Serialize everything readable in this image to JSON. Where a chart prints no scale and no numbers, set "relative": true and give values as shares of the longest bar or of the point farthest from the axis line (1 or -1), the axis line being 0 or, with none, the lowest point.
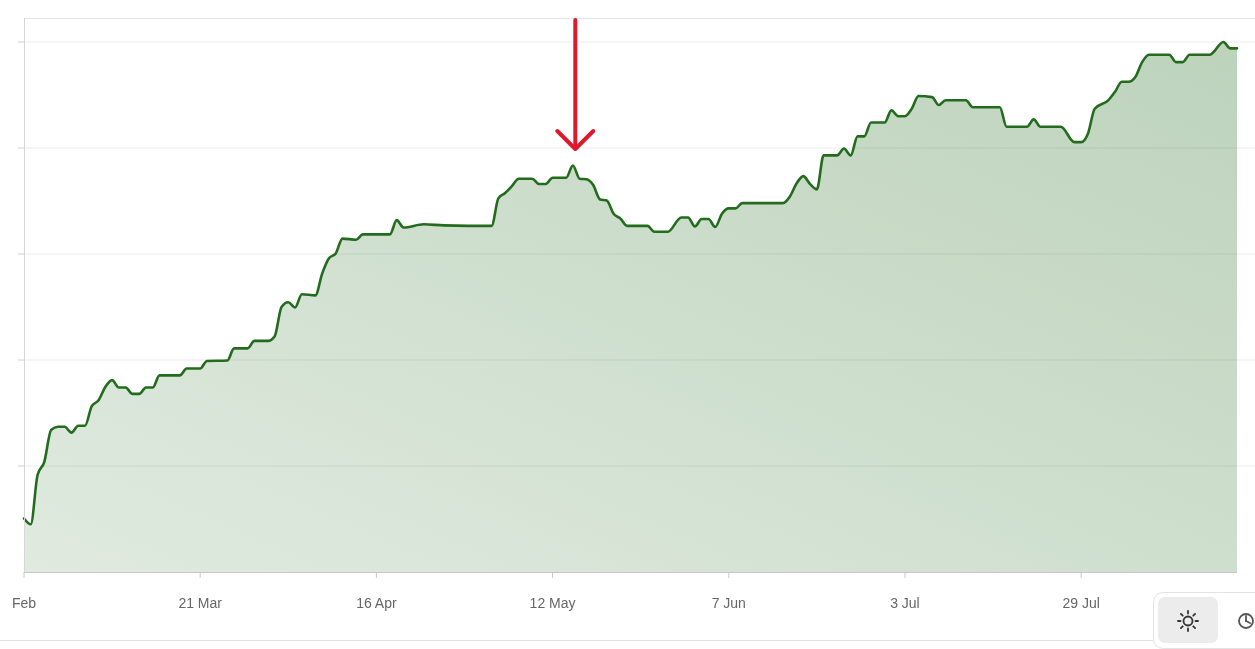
{
  "chart_data": {
    "type": "area",
    "relative": true,
    "grid": "y",
    "x": [
      "--02-23",
      "--02-24",
      "--02-25",
      "--02-26",
      "--02-27",
      "--02-28",
      "--03-01",
      "--03-02",
      "--03-03",
      "--03-04",
      "--03-05",
      "--03-06",
      "--03-07",
      "--03-08",
      "--03-09",
      "--03-10",
      "--03-11",
      "--03-12",
      "--03-13",
      "--03-14",
      "--03-15",
      "--03-18",
      "--03-19",
      "--03-21",
      "--03-22",
      "--03-25",
      "--03-26",
      "--03-28",
      "--03-29",
      "--03-31",
      "--04-01",
      "--04-02",
      "--04-03",
      "--04-04",
      "--04-05",
      "--04-07",
      "--04-08",
      "--04-09",
      "--04-10",
      "--04-11",
      "--04-13",
      "--04-14",
      "--04-18",
      "--04-19",
      "--04-20",
      "--04-23",
      "--04-26",
      "--05-03",
      "--05-04",
      "--05-05",
      "--05-06",
      "--05-07",
      "--05-09",
      "--05-10",
      "--05-11",
      "--05-12",
      "--05-14",
      "--05-15",
      "--05-16",
      "--05-17",
      "--05-18",
      "--05-19",
      "--05-20",
      "--05-21",
      "--05-22",
      "--05-23",
      "--05-26",
      "--05-27",
      "--05-29",
      "--05-31",
      "--06-01",
      "--06-02",
      "--06-03",
      "--06-04",
      "--06-05",
      "--06-06",
      "--06-07",
      "--06-08",
      "--06-09",
      "--06-15",
      "--06-16",
      "--06-17",
      "--06-18",
      "--06-19",
      "--06-20",
      "--06-21",
      "--06-23",
      "--06-24",
      "--06-25",
      "--06-26",
      "--06-27",
      "--06-28",
      "--06-30",
      "--07-01",
      "--07-02",
      "--07-03",
      "--07-04",
      "--07-05",
      "--07-07",
      "--07-08",
      "--07-09",
      "--07-12",
      "--07-13",
      "--07-17",
      "--07-18",
      "--07-21",
      "--07-22",
      "--07-23",
      "--07-26",
      "--07-28",
      "--07-29",
      "--07-30",
      "--07-31",
      "--08-02",
      "--08-03",
      "--08-04",
      "--08-05",
      "--08-06",
      "--08-07",
      "--08-08",
      "--08-11",
      "--08-12",
      "--08-13",
      "--08-14",
      "--08-17",
      "--08-19",
      "--08-20",
      "--08-21"
    ],
    "series": [
      {
        "color": "#236c1e",
        "values": [
          0.101,
          0.09,
          0.183,
          0.208,
          0.268,
          0.274,
          0.274,
          0.263,
          0.276,
          0.276,
          0.313,
          0.324,
          0.349,
          0.362,
          0.348,
          0.348,
          0.336,
          0.336,
          0.348,
          0.348,
          0.371,
          0.371,
          0.384,
          0.384,
          0.398,
          0.399,
          0.422,
          0.422,
          0.436,
          0.436,
          0.445,
          0.5,
          0.509,
          0.499,
          0.524,
          0.522,
          0.563,
          0.592,
          0.601,
          0.629,
          0.627,
          0.637,
          0.637,
          0.664,
          0.65,
          0.656,
          0.654,
          0.653,
          0.705,
          0.715,
          0.728,
          0.742,
          0.742,
          0.732,
          0.732,
          0.744,
          0.744,
          0.767,
          0.742,
          0.741,
          0.73,
          0.703,
          0.701,
          0.676,
          0.667,
          0.653,
          0.653,
          0.642,
          0.642,
          0.669,
          0.669,
          0.652,
          0.666,
          0.666,
          0.651,
          0.676,
          0.686,
          0.686,
          0.696,
          0.696,
          0.708,
          0.733,
          0.747,
          0.732,
          0.722,
          0.786,
          0.786,
          0.799,
          0.786,
          0.822,
          0.822,
          0.848,
          0.848,
          0.871,
          0.86,
          0.86,
          0.874,
          0.898,
          0.896,
          0.881,
          0.89,
          0.89,
          0.877,
          0.877,
          0.84,
          0.84,
          0.854,
          0.84,
          0.84,
          0.811,
          0.811,
          0.827,
          0.874,
          0.89,
          0.906,
          0.925,
          0.925,
          0.934,
          0.962,
          0.976,
          0.976,
          0.962,
          0.962,
          0.976,
          0.976,
          1,
          0.988,
          0.988
        ]
      }
    ],
    "xlim": [
      "--02-23",
      "--08-21"
    ],
    "xticks": [
      {
        "value": "--02-23",
        "label": "Feb"
      },
      {
        "value": "--03-21",
        "label": "21 Mar"
      },
      {
        "value": "--04-16",
        "label": "16 Apr"
      },
      {
        "value": "--05-12",
        "label": "12 May"
      },
      {
        "value": "--06-07",
        "label": "7 Jun"
      },
      {
        "value": "--07-03",
        "label": "3 Jul"
      },
      {
        "value": "--07-29",
        "label": "29 Jul"
      }
    ]
  }
}
